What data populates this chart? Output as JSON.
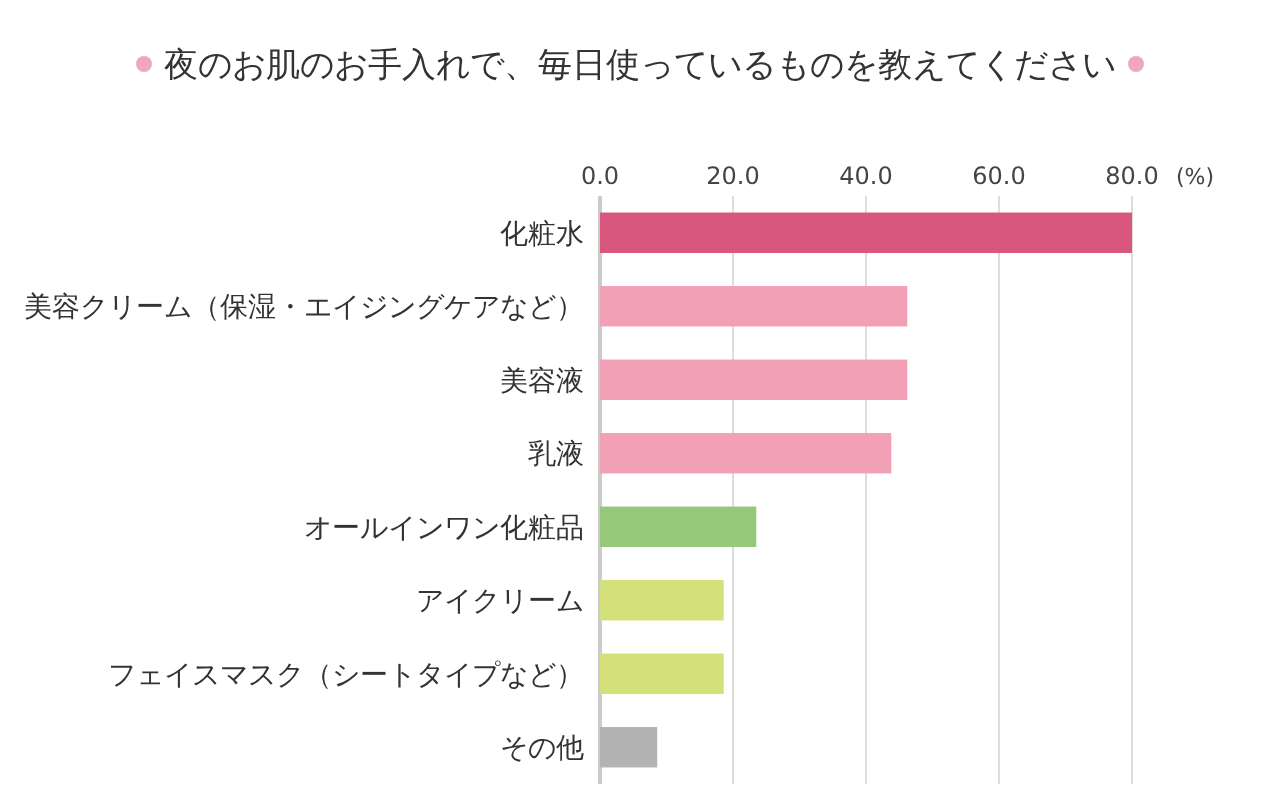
{
  "chart_data": {
    "type": "bar",
    "orientation": "horizontal",
    "title": "夜のお肌のお手入れで、毎日使っているものを教えてください",
    "xlabel": "(%)",
    "categories": [
      "化粧水",
      "美容クリーム（保湿・エイジングケアなど）",
      "美容液",
      "乳液",
      "オールインワン化粧品",
      "アイクリーム",
      "フェイスマスク（シートタイプなど）",
      "その他"
    ],
    "values": [
      80.0,
      46.2,
      46.2,
      43.8,
      23.5,
      18.6,
      18.6,
      8.6
    ],
    "colors": [
      "#d9577f",
      "#f2a0b5",
      "#f2a0b5",
      "#f2a0b5",
      "#96c87a",
      "#d4e17a",
      "#d4e17a",
      "#b3b3b3"
    ],
    "xlim": [
      0,
      80
    ],
    "xticks": [
      {
        "value": 0,
        "label": "0.0"
      },
      {
        "value": 20,
        "label": "20.0"
      },
      {
        "value": 40,
        "label": "40.0"
      },
      {
        "value": 60,
        "label": "60.0"
      },
      {
        "value": 80,
        "label": "80.0"
      }
    ],
    "grid": "x"
  }
}
